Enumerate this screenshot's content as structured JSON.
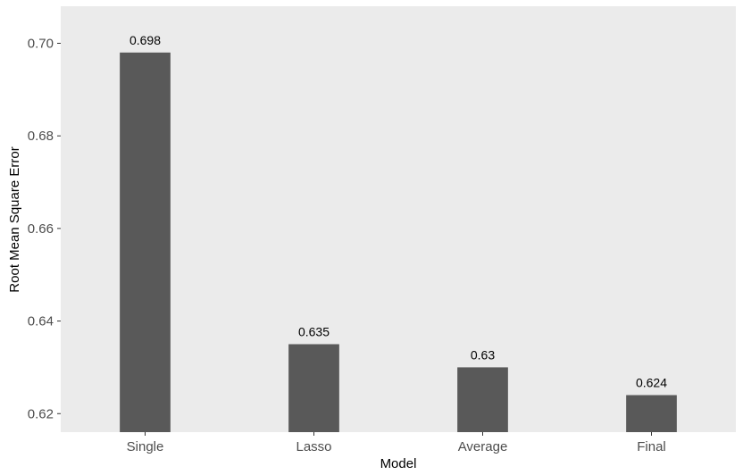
{
  "chart_data": {
    "type": "bar",
    "title": "",
    "xlabel": "Model",
    "ylabel": "Root Mean Square Error",
    "categories": [
      "Single",
      "Lasso",
      "Average",
      "Final"
    ],
    "values": [
      0.698,
      0.635,
      0.63,
      0.624
    ],
    "data_labels": [
      "0.698",
      "0.635",
      "0.63",
      "0.624"
    ],
    "ylim": [
      0.616,
      0.708
    ],
    "yticks": [
      0.62,
      0.64,
      0.66,
      0.68,
      0.7
    ],
    "ytick_labels": [
      "0.62",
      "0.64",
      "0.66",
      "0.68",
      "0.70"
    ],
    "grid": false,
    "legend": "none",
    "colors": {
      "bar": "#595959",
      "panel": "#ebebeb",
      "tick": "#333333",
      "tick_label": "#4d4d4d",
      "text": "#000000"
    }
  }
}
